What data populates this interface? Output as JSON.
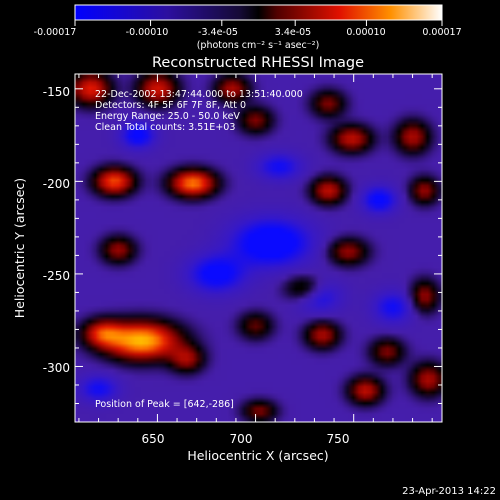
{
  "colorbar": {
    "ticks": [
      "-0.00017",
      "-0.00010",
      "-3.4e-05",
      "3.4e-05",
      "0.00010",
      "0.00017"
    ],
    "tick_values": [
      -0.00017,
      -0.0001,
      -3.4e-05,
      3.4e-05,
      0.0001,
      0.00017
    ],
    "range": [
      -0.00017,
      0.00017
    ],
    "unit_label": "(photons cm⁻² s⁻¹ asec⁻²)"
  },
  "chart_data": {
    "type": "heatmap",
    "title": "Reconstructed RHESSI Image",
    "xlabel": "Heliocentric X (arcsec)",
    "ylabel": "Heliocentric Y (arcsec)",
    "xlim": [
      608,
      795
    ],
    "ylim": [
      -330,
      -142
    ],
    "x_ticks": [
      "650",
      "700",
      "750"
    ],
    "y_ticks": [
      "-150",
      "-200",
      "-250",
      "-300"
    ],
    "peak": {
      "x": 642,
      "y": -286
    },
    "sources": [
      {
        "x": 642,
        "y": -286,
        "sx": 13,
        "sy": 7,
        "amp": 1.0
      },
      {
        "x": 622,
        "y": -282,
        "sx": 7,
        "sy": 5,
        "amp": 0.58
      },
      {
        "x": 665,
        "y": -296,
        "sx": 6,
        "sy": 5,
        "amp": 0.45
      },
      {
        "x": 616,
        "y": -150,
        "sx": 7,
        "sy": 6,
        "amp": 0.65
      },
      {
        "x": 650,
        "y": -150,
        "sx": 7,
        "sy": 6,
        "amp": 0.6
      },
      {
        "x": 688,
        "y": -150,
        "sx": 6,
        "sy": 5,
        "amp": 0.5
      },
      {
        "x": 628,
        "y": -200,
        "sx": 7,
        "sy": 5,
        "amp": 0.75
      },
      {
        "x": 668,
        "y": -201,
        "sx": 8,
        "sy": 5,
        "amp": 0.85
      },
      {
        "x": 737,
        "y": -205,
        "sx": 6,
        "sy": 5,
        "amp": 0.55
      },
      {
        "x": 749,
        "y": -177,
        "sx": 7,
        "sy": 5,
        "amp": 0.55
      },
      {
        "x": 780,
        "y": -176,
        "sx": 6,
        "sy": 6,
        "amp": 0.5
      },
      {
        "x": 737,
        "y": -158,
        "sx": 6,
        "sy": 5,
        "amp": 0.4
      },
      {
        "x": 700,
        "y": -167,
        "sx": 6,
        "sy": 5,
        "amp": 0.4
      },
      {
        "x": 786,
        "y": -205,
        "sx": 5,
        "sy": 5,
        "amp": 0.45
      },
      {
        "x": 630,
        "y": -237,
        "sx": 6,
        "sy": 5,
        "amp": 0.45
      },
      {
        "x": 747,
        "y": -238,
        "sx": 7,
        "sy": 5,
        "amp": 0.45
      },
      {
        "x": 725,
        "y": -258,
        "sx": 7,
        "sy": 5,
        "amp": 0.4
      },
      {
        "x": 786,
        "y": -262,
        "sx": 5,
        "sy": 6,
        "amp": 0.45
      },
      {
        "x": 700,
        "y": -278,
        "sx": 6,
        "sy": 5,
        "amp": 0.35
      },
      {
        "x": 734,
        "y": -283,
        "sx": 6,
        "sy": 5,
        "amp": 0.5
      },
      {
        "x": 767,
        "y": -292,
        "sx": 6,
        "sy": 5,
        "amp": 0.4
      },
      {
        "x": 756,
        "y": -313,
        "sx": 6,
        "sy": 5,
        "amp": 0.55
      },
      {
        "x": 788,
        "y": -307,
        "sx": 6,
        "sy": 6,
        "amp": 0.5
      },
      {
        "x": 702,
        "y": -324,
        "sx": 6,
        "sy": 4,
        "amp": 0.4
      },
      {
        "x": 640,
        "y": -175,
        "sx": 6,
        "sy": 5,
        "amp": -0.45
      },
      {
        "x": 708,
        "y": -233,
        "sx": 14,
        "sy": 9,
        "amp": -0.55
      },
      {
        "x": 680,
        "y": -250,
        "sx": 10,
        "sy": 7,
        "amp": -0.45
      },
      {
        "x": 763,
        "y": -210,
        "sx": 6,
        "sy": 5,
        "amp": -0.45
      },
      {
        "x": 732,
        "y": -262,
        "sx": 8,
        "sy": 6,
        "amp": -0.35
      },
      {
        "x": 770,
        "y": -268,
        "sx": 7,
        "sy": 6,
        "amp": -0.35
      },
      {
        "x": 620,
        "y": -312,
        "sx": 7,
        "sy": 5,
        "amp": -0.35
      },
      {
        "x": 712,
        "y": -192,
        "sx": 8,
        "sy": 5,
        "amp": -0.35
      }
    ]
  },
  "annotations": {
    "time": "22-Dec-2002 13:47:44.000 to 13:51:40.000",
    "detectors": "Detectors: 4F 5F 6F 7F 8F, Att 0",
    "energy": "Energy Range: 25.0 - 50.0 keV",
    "clean": "Clean    Total counts: 3.51E+03",
    "peak": "Position of Peak = [642,-286]"
  },
  "footer": {
    "timestamp": "23-Apr-2013 14:22"
  }
}
